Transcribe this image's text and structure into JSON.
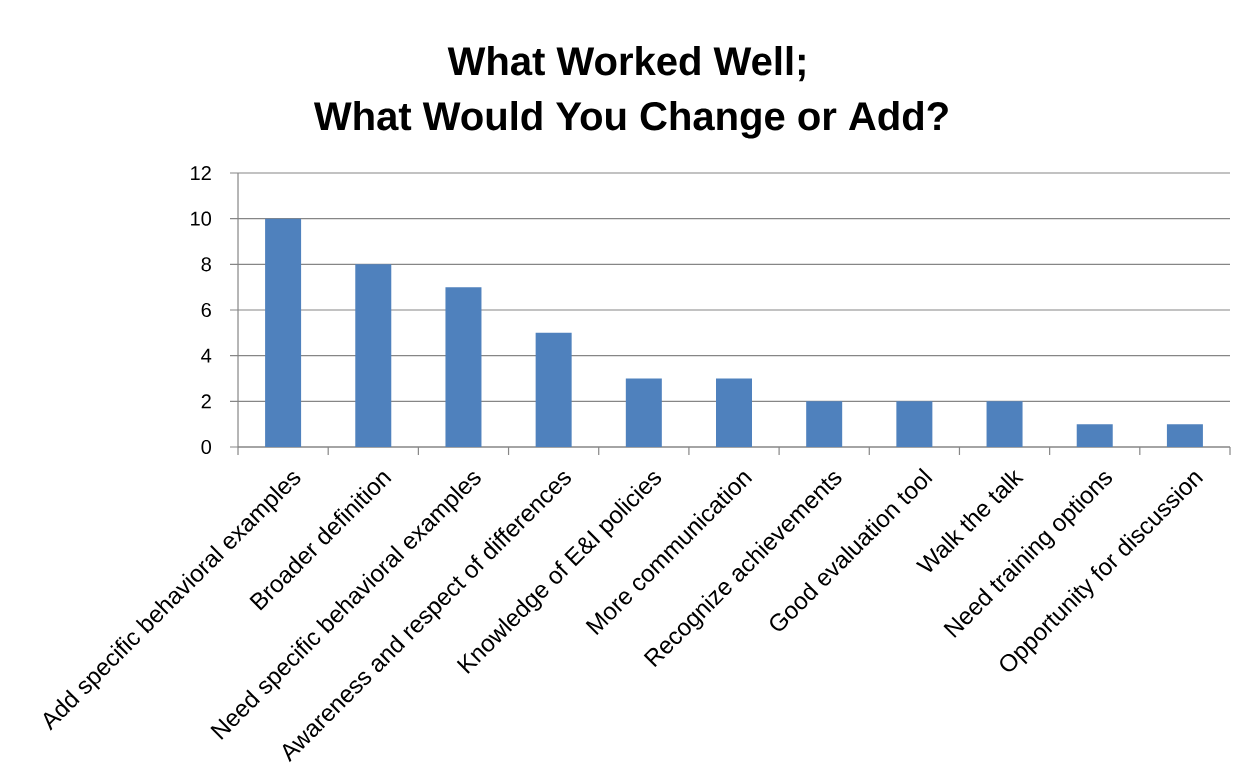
{
  "chart_data": {
    "type": "bar",
    "title": "What Worked Well;",
    "subtitle": "What Would You Change or Add?",
    "categories": [
      "Add specific behavioral examples",
      "Broader definition",
      "Need specific behavioral examples",
      "Awareness and respect of differences",
      "Knowledge of E&I policies",
      "More communication",
      "Recognize achievements",
      "Good evaluation tool",
      "Walk the talk",
      "Need training options",
      "Opportunity for discussion"
    ],
    "values": [
      10,
      8,
      7,
      5,
      3,
      3,
      2,
      2,
      2,
      1,
      1
    ],
    "color": "#4f81bd",
    "ylim": [
      0,
      12
    ],
    "yticks": [
      0,
      2,
      4,
      6,
      8,
      10,
      12
    ],
    "grid": "y"
  }
}
